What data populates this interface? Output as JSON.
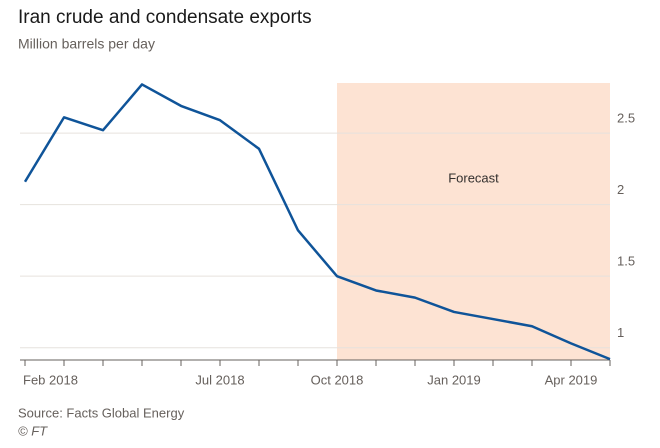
{
  "chart_data": {
    "type": "line",
    "title": "Iran crude and condensate exports",
    "subtitle": "Million barrels per day",
    "categories": [
      "Feb 2018",
      null,
      null,
      null,
      null,
      "Jul 2018",
      null,
      null,
      "Oct 2018",
      null,
      null,
      "Jan 2019",
      null,
      null,
      "Apr 2019",
      null
    ],
    "series": [
      {
        "name": "Exports",
        "color": "#0f5499",
        "values": [
          2.16,
          2.61,
          2.52,
          2.84,
          2.69,
          2.59,
          2.39,
          1.82,
          1.5,
          1.4,
          1.35,
          1.25,
          1.2,
          1.15,
          1.03,
          0.92
        ]
      }
    ],
    "ylim": [
      0.9,
      2.85
    ],
    "yticks": [
      1,
      1.5,
      2,
      2.5
    ],
    "grid": true,
    "annotation": {
      "text": "Forecast",
      "from": "Oct 2018",
      "color": "#fde3d3"
    },
    "source": "Source: Facts Global Energy",
    "credit": "© FT"
  }
}
